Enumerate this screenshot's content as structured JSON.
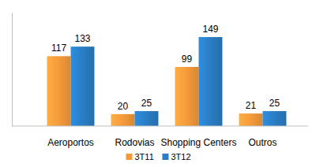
{
  "chart_data": {
    "type": "bar",
    "categories": [
      "Aeroportos",
      "Rodovias",
      "Shopping Centers",
      "Outros"
    ],
    "series": [
      {
        "name": "3T11",
        "color": "#F59A3B",
        "values": [
          117,
          20,
          99,
          21
        ]
      },
      {
        "name": "3T12",
        "color": "#2A7DC4",
        "values": [
          133,
          25,
          149,
          25
        ]
      }
    ],
    "ylim": [
      0,
      190
    ],
    "data_labels": true,
    "tick_labels": "x",
    "legend": "bottom",
    "grid": false
  }
}
